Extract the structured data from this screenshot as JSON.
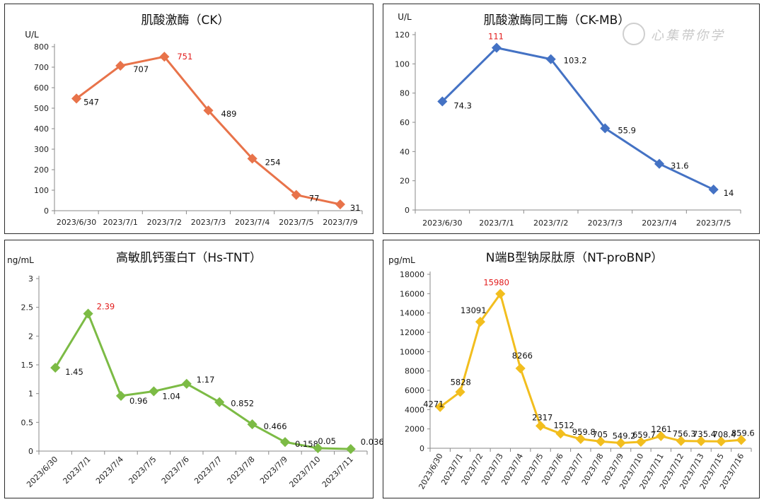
{
  "chart_data": [
    {
      "type": "line",
      "title": "肌酸激酶（CK）",
      "ylabel": "U/L",
      "xlabel": "",
      "color": "#e8734a",
      "categories": [
        "2023/6/30",
        "2023/7/1",
        "2023/7/2",
        "2023/7/3",
        "2023/7/4",
        "2023/7/5",
        "2023/7/9"
      ],
      "values": [
        547,
        707,
        751,
        489,
        254,
        77,
        31
      ],
      "labels": [
        "547",
        "707",
        "751",
        "489",
        "254",
        "77",
        "31"
      ],
      "highlight_index": 2,
      "yticks": [
        "0",
        "100",
        "200",
        "300",
        "400",
        "500",
        "600",
        "700",
        "800"
      ],
      "ylim": [
        0,
        800
      ],
      "grid": false,
      "xtick_rotation": 0
    },
    {
      "type": "line",
      "title": "肌酸激酶同工酶（CK-MB）",
      "ylabel": "U/L",
      "xlabel": "",
      "color": "#4472c4",
      "categories": [
        "2023/6/30",
        "2023/7/1",
        "2023/7/2",
        "2023/7/3",
        "2023/7/4",
        "2023/7/5"
      ],
      "values": [
        74.3,
        111,
        103.2,
        55.9,
        31.6,
        14
      ],
      "labels": [
        "74.3",
        "111",
        "103.2",
        "55.9",
        "31.6",
        "14"
      ],
      "highlight_index": 1,
      "yticks": [
        "0",
        "20",
        "40",
        "60",
        "80",
        "100",
        "120"
      ],
      "ylim": [
        0,
        120
      ],
      "grid": false,
      "xtick_rotation": 0
    },
    {
      "type": "line",
      "title": "高敏肌钙蛋白T（Hs-TNT）",
      "ylabel": "ng/mL",
      "xlabel": "",
      "color": "#7cbb45",
      "categories": [
        "2023/6/30",
        "2023/7/1",
        "2023/7/4",
        "2023/7/5",
        "2023/7/6",
        "2023/7/7",
        "2023/7/8",
        "2023/7/9",
        "2023/7/10",
        "2023/7/11"
      ],
      "values": [
        1.45,
        2.39,
        0.96,
        1.04,
        1.17,
        0.852,
        0.466,
        0.158,
        0.05,
        0.036
      ],
      "labels": [
        "1.45",
        "2.39",
        "0.96",
        "1.04",
        "1.17",
        "0.852",
        "0.466",
        "0.158",
        "0.05",
        "0.036"
      ],
      "highlight_index": 1,
      "yticks": [
        "0",
        "0.5",
        "1",
        "1.5",
        "2",
        "2.5",
        "3"
      ],
      "ylim": [
        0,
        3
      ],
      "grid": false,
      "xtick_rotation": -45
    },
    {
      "type": "line",
      "title": "N端B型钠尿肽原（NT-proBNP）",
      "ylabel": "pg/mL",
      "xlabel": "",
      "color": "#f2be1e",
      "categories": [
        "2023/6/30",
        "2023/7/1",
        "2023/7/2",
        "2023/7/3",
        "2023/7/4",
        "2023/7/5",
        "2023/7/6",
        "2023/7/7",
        "2023/7/8",
        "2023/7/9",
        "2023/7/10",
        "2023/7/11",
        "2023/7/12",
        "2023/7/13",
        "2023/7/15",
        "2023/7/16"
      ],
      "values": [
        4271,
        5828,
        13091,
        15980,
        8266,
        2317,
        1512,
        959.8,
        705,
        549.2,
        659.7,
        1261,
        756.3,
        735.4,
        708.4,
        859.6
      ],
      "labels": [
        "4271",
        "5828",
        "13091",
        "15980",
        "8266",
        "2317",
        "1512",
        "959.8",
        "705",
        "549.2",
        "659.7",
        "1261",
        "756.3",
        "735.4",
        "708.4",
        "859.6"
      ],
      "highlight_index": 3,
      "yticks": [
        "0",
        "2000",
        "4000",
        "6000",
        "8000",
        "10000",
        "12000",
        "14000",
        "16000",
        "18000"
      ],
      "ylim": [
        0,
        18000
      ],
      "grid": false,
      "xtick_rotation": -60
    }
  ],
  "watermark": {
    "text": "心集带你学"
  }
}
